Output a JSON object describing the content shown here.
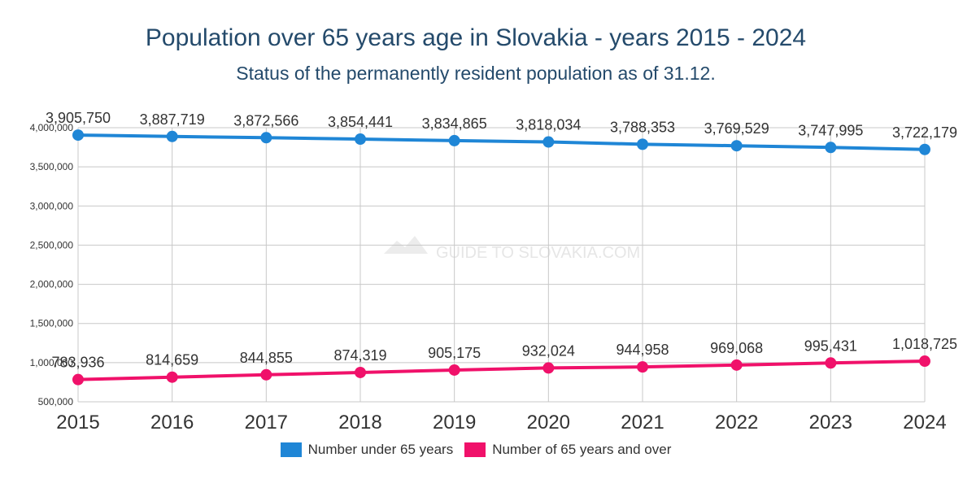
{
  "title": "Population over 65 years age in Slovakia - years 2015 - 2024",
  "subtitle": "Status of the permanently resident population as of 31.12.",
  "watermark": "GUIDE TO SLOVAKIA.COM",
  "colors": {
    "under65": "#1f86d6",
    "over65": "#f0116a",
    "grid": "#c8c8c8",
    "text": "#333333"
  },
  "chart_data": {
    "type": "line",
    "x": [
      "2015",
      "2016",
      "2017",
      "2018",
      "2019",
      "2020",
      "2021",
      "2022",
      "2023",
      "2024"
    ],
    "ylim": [
      500000,
      4000000
    ],
    "yticks": [
      500000,
      1000000,
      1500000,
      2000000,
      2500000,
      3000000,
      3500000,
      4000000
    ],
    "ytick_labels": [
      "500,000",
      "1,000,000",
      "1,500,000",
      "2,000,000",
      "2,500,000",
      "3,000,000",
      "3,500,000",
      "4,000,000"
    ],
    "grid": true,
    "legend_position": "bottom",
    "series": [
      {
        "name": "Number under 65 years",
        "values": [
          3905750,
          3887719,
          3872566,
          3854441,
          3834865,
          3818034,
          3788353,
          3769529,
          3747995,
          3722179
        ],
        "labels": [
          "3,905,750",
          "3,887,719",
          "3,872,566",
          "3,854,441",
          "3,834,865",
          "3,818,034",
          "3,788,353",
          "3,769,529",
          "3,747,995",
          "3,722,179"
        ]
      },
      {
        "name": "Number of 65 years and over",
        "values": [
          783936,
          814659,
          844855,
          874319,
          905175,
          932024,
          944958,
          969068,
          995431,
          1018725
        ],
        "labels": [
          "783,936",
          "814,659",
          "844,855",
          "874,319",
          "905,175",
          "932,024",
          "944,958",
          "969,068",
          "995,431",
          "1,018,725"
        ]
      }
    ]
  }
}
